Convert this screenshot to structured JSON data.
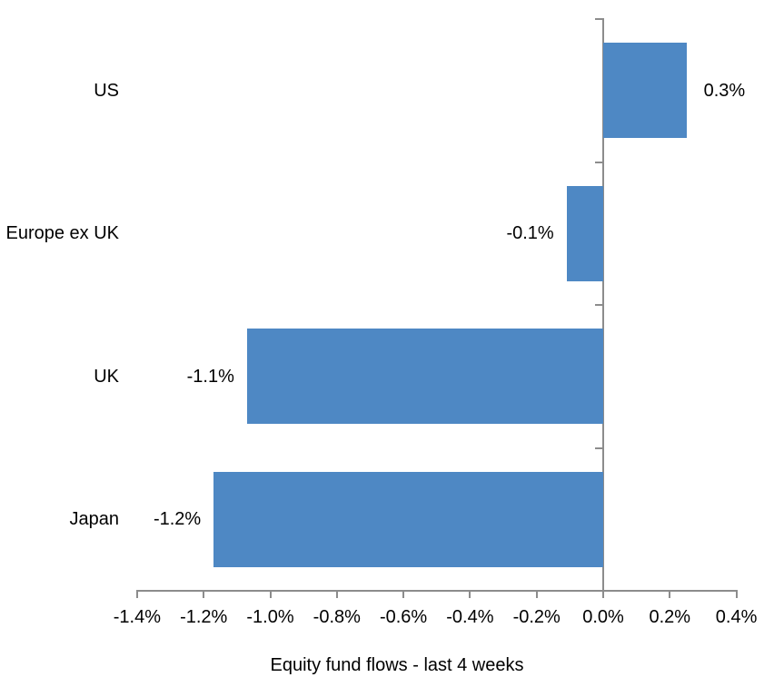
{
  "chart_data": {
    "type": "bar",
    "orientation": "horizontal",
    "title": "",
    "categories": [
      "US",
      "Europe ex UK",
      "UK",
      "Japan"
    ],
    "values": [
      0.3,
      -0.1,
      -1.1,
      -1.2
    ],
    "data_labels": [
      "0.3%",
      "-0.1%",
      "-1.1%",
      "-1.2%"
    ],
    "plotted_values": [
      0.25,
      -0.11,
      -1.07,
      -1.17
    ],
    "series": [
      {
        "name": "Equity fund flows - last 4 weeks",
        "values": [
          0.3,
          -0.1,
          -1.1,
          -1.2
        ]
      }
    ],
    "x_ticks": [
      "-1.4%",
      "-1.2%",
      "-1.0%",
      "-0.8%",
      "-0.6%",
      "-0.4%",
      "-0.2%",
      "0.0%",
      "0.2%",
      "0.4%"
    ],
    "x_tick_values": [
      -1.4,
      -1.2,
      -1.0,
      -0.8,
      -0.6,
      -0.4,
      -0.2,
      0.0,
      0.2,
      0.4
    ],
    "xlim": [
      -1.4,
      0.4
    ],
    "xlabel": "",
    "ylabel": "",
    "grid": false,
    "legend_position": "bottom",
    "bar_color": "#4E88C4",
    "axis_color": "#8C8C8C",
    "text_color": "#000000",
    "background_color": "#FFFFFF"
  },
  "legend": {
    "label": "Equity fund flows - last 4 weeks"
  }
}
